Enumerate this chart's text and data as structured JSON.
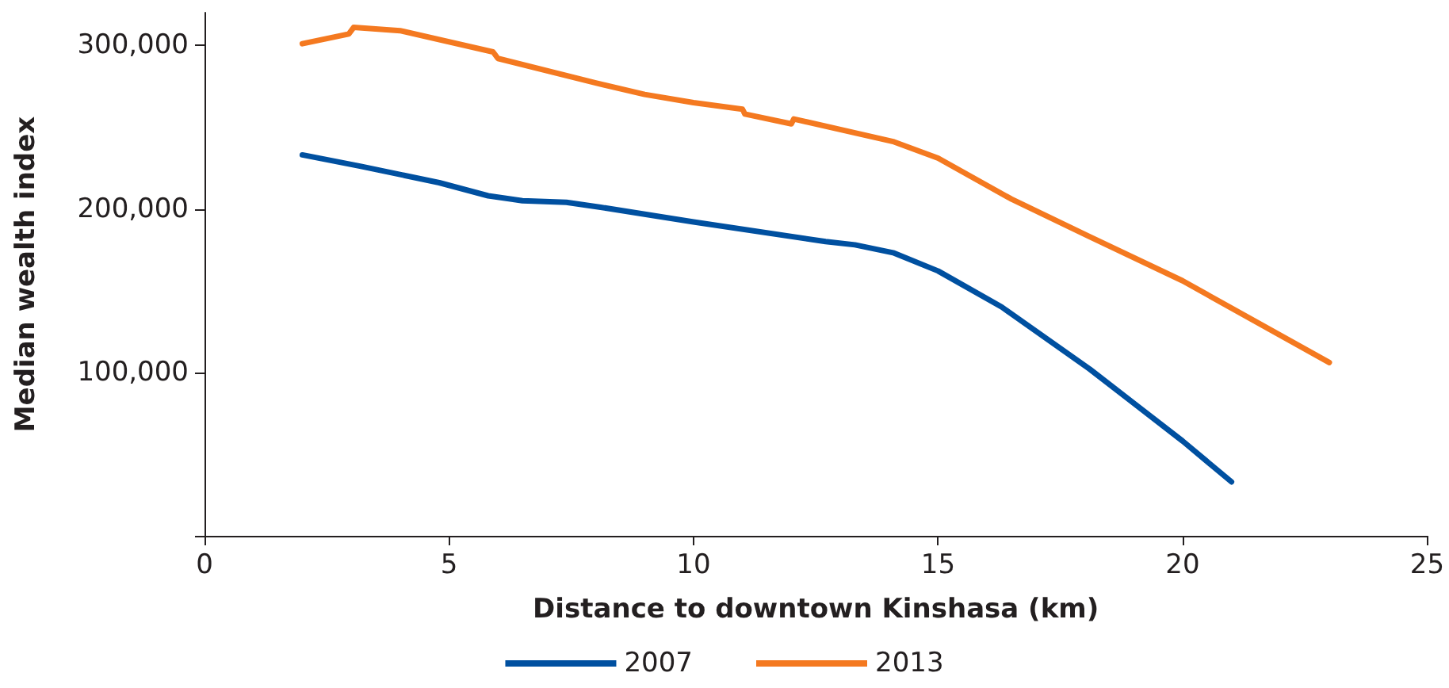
{
  "chart_data": {
    "type": "line",
    "xlabel": "Distance to downtown Kinshasa (km)",
    "ylabel": "Median wealth index",
    "xlim": [
      0,
      25
    ],
    "xticks": [
      0,
      5,
      10,
      15,
      20,
      25
    ],
    "ylim": [
      0,
      320000
    ],
    "yticks": [
      {
        "value": 0,
        "label": null
      },
      {
        "value": 100000,
        "label": "100,000"
      },
      {
        "value": 200000,
        "label": "200,000"
      },
      {
        "value": 300000,
        "label": "300,000"
      }
    ],
    "grid": false,
    "legend": "bottom",
    "marker": "none",
    "line_style": "solid",
    "series": [
      {
        "name": "2007",
        "color": "#0050a0",
        "x": [
          2.0,
          3.2,
          4.8,
          5.8,
          6.5,
          7.4,
          8.1,
          10,
          12.7,
          13.3,
          14.1,
          15,
          16.3,
          18.1,
          20,
          21
        ],
        "values": [
          233000,
          226000,
          216000,
          208000,
          205000,
          204000,
          201000,
          192000,
          180000,
          178000,
          173000,
          162000,
          140000,
          102000,
          58000,
          33000
        ]
      },
      {
        "name": "2013",
        "color": "#f47920",
        "x": [
          2.0,
          2.95,
          3.05,
          4.0,
          5.9,
          6.0,
          8.0,
          9.0,
          10.0,
          11.0,
          11.05,
          12.0,
          12.05,
          14.1,
          15,
          16.5,
          18.1,
          20,
          23
        ],
        "values": [
          301000,
          307000,
          311000,
          309000,
          296000,
          292000,
          277000,
          270000,
          265000,
          261000,
          258000,
          252000,
          255000,
          241000,
          231000,
          206000,
          183000,
          156000,
          106000
        ]
      }
    ]
  }
}
